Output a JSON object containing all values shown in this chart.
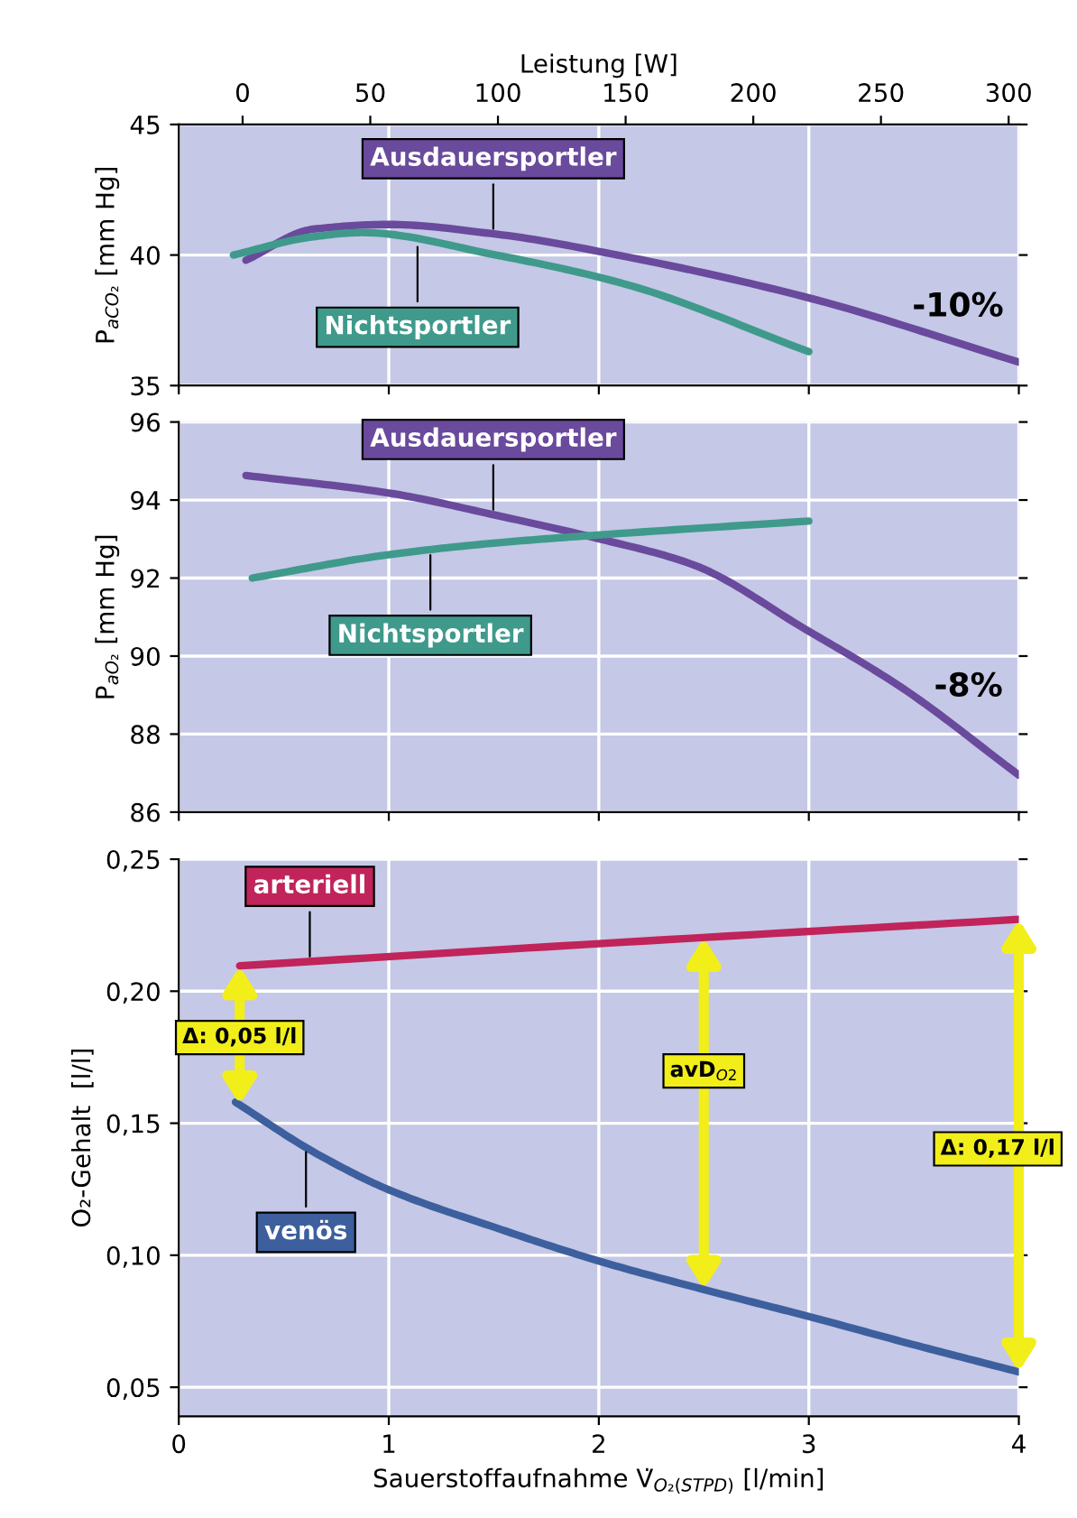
{
  "chart_data": [
    {
      "type": "line",
      "ylabel": "P$_{aCO₂}$ [mm Hg]",
      "x2label": "Leistung [W]",
      "xlim": [
        0,
        4
      ],
      "xticks": [
        {
          "value": 0,
          "label": null
        },
        {
          "value": 1,
          "label": null
        },
        {
          "value": 2,
          "label": null
        },
        {
          "value": 3,
          "label": null
        },
        {
          "value": 4,
          "label": null
        }
      ],
      "x2lim": [
        -25,
        304
      ],
      "x2ticks": [
        0,
        50,
        100,
        150,
        200,
        250,
        300
      ],
      "ylim": [
        35,
        45
      ],
      "yticks": [
        35,
        40,
        45
      ],
      "grid": true,
      "tick_labels": "y",
      "series": [
        {
          "name": "Ausdauersportler",
          "color": "#6a4a9c",
          "x": [
            0.32,
            0.64,
            1.0,
            1.51,
            2.12,
            2.98,
            4.0
          ],
          "values": [
            39.8,
            40.99,
            41.17,
            40.8,
            39.95,
            38.4,
            35.9
          ]
        },
        {
          "name": "Nichtsportler",
          "color": "#3f9a8c",
          "x": [
            0.26,
            0.64,
            0.87,
            1.51,
            2.12,
            3.0
          ],
          "values": [
            40.0,
            40.7,
            40.86,
            40.0,
            38.9,
            36.3
          ]
        }
      ],
      "annotations": [
        "-10%"
      ]
    },
    {
      "type": "line",
      "ylabel": "P$_{aO₂}$ [mm Hg]",
      "xlim": [
        0,
        4
      ],
      "xticks": [
        {
          "value": 0,
          "label": null
        },
        {
          "value": 1,
          "label": null
        },
        {
          "value": 2,
          "label": null
        },
        {
          "value": 3,
          "label": null
        },
        {
          "value": 4,
          "label": null
        }
      ],
      "ylim": [
        86,
        96
      ],
      "yticks": [
        86,
        88,
        90,
        92,
        94,
        96
      ],
      "grid": true,
      "tick_labels": "y",
      "series": [
        {
          "name": "Ausdauersportler",
          "color": "#6a4a9c",
          "x": [
            0.32,
            1.0,
            1.51,
            1.99,
            2.45,
            2.98,
            3.44,
            4.0
          ],
          "values": [
            94.63,
            94.18,
            93.61,
            93.02,
            92.34,
            90.7,
            89.2,
            86.95
          ]
        },
        {
          "name": "Nichtsportler",
          "color": "#3f9a8c",
          "x": [
            0.35,
            1.0,
            1.51,
            1.99,
            3.0
          ],
          "values": [
            92.0,
            92.6,
            92.9,
            93.1,
            93.46
          ]
        }
      ],
      "annotations": [
        "-8%"
      ]
    },
    {
      "type": "line",
      "ylabel": "O₂-Gehalt  [l/l]",
      "xlabel": "Sauerstoffaufnahme V̇$_{O₂(STPD)}$ [l/min]",
      "xlim": [
        0,
        4
      ],
      "xticks": [
        0,
        1,
        2,
        3,
        4
      ],
      "ylim": [
        0.039,
        0.25
      ],
      "yticks": [
        {
          "value": 0.05,
          "label": "0,05"
        },
        {
          "value": 0.1,
          "label": "0,10"
        },
        {
          "value": 0.15,
          "label": "0,15"
        },
        {
          "value": 0.2,
          "label": "0,20"
        },
        {
          "value": 0.25,
          "label": "0,25"
        }
      ],
      "grid": true,
      "series": [
        {
          "name": "arteriell",
          "color": "#c0245a",
          "x": [
            0.29,
            2.0,
            4.0
          ],
          "values": [
            0.2096,
            0.218,
            0.2272
          ]
        },
        {
          "name": "venös",
          "color": "#3d5f9e",
          "x": [
            0.27,
            0.64,
            1.0,
            1.51,
            2.0,
            2.51,
            3.0,
            3.49,
            4.0
          ],
          "values": [
            0.158,
            0.1392,
            0.1248,
            0.1104,
            0.0978,
            0.0868,
            0.0768,
            0.0663,
            0.0558
          ]
        }
      ],
      "annotations": [
        "Δ: 0,05 l/l",
        "avD$_{O2}$",
        "Δ: 0,17 l/l"
      ]
    }
  ]
}
